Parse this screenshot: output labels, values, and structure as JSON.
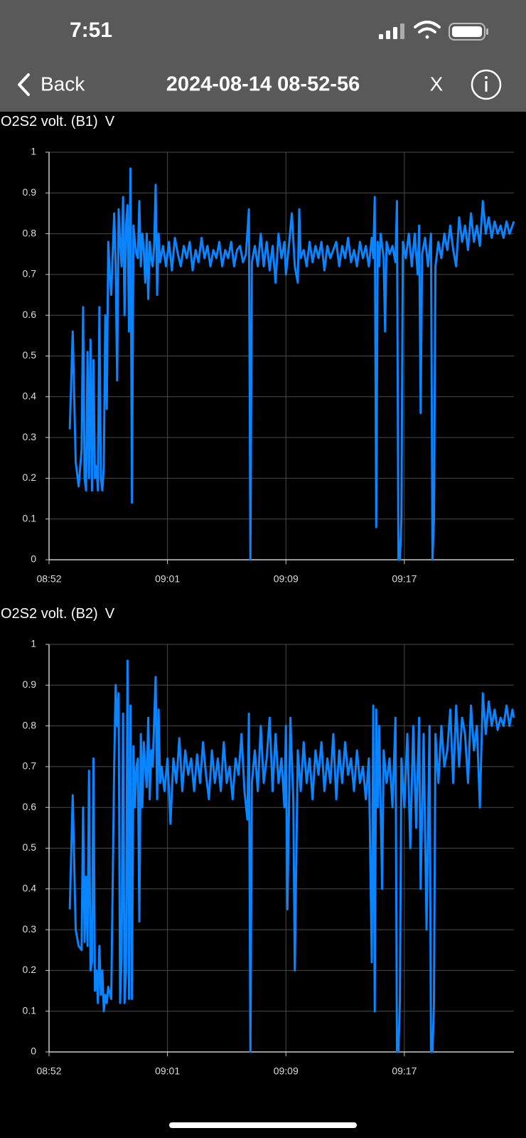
{
  "status_bar": {
    "time": "7:51"
  },
  "nav": {
    "back": "Back",
    "title": "2024-08-14 08-52-56",
    "close": "X"
  },
  "chart_data": [
    {
      "type": "line",
      "title": "O2S2 volt. (B1)",
      "unit": "V",
      "color": "#0a84ff",
      "grid": true,
      "xlim": [
        0,
        31.4
      ],
      "xticks": [
        {
          "value": 0,
          "label": "08:52"
        },
        {
          "value": 8,
          "label": "09:01"
        },
        {
          "value": 16,
          "label": "09:09"
        },
        {
          "value": 24,
          "label": "09:17"
        }
      ],
      "ylim": [
        0,
        1
      ],
      "yticks": [
        0,
        0.1,
        0.2,
        0.3,
        0.4,
        0.5,
        0.6,
        0.7,
        0.8,
        0.9,
        1
      ],
      "x": [
        1.4,
        1.6,
        1.8,
        2.0,
        2.2,
        2.3,
        2.4,
        2.5,
        2.6,
        2.7,
        2.8,
        2.9,
        3.0,
        3.1,
        3.2,
        3.3,
        3.4,
        3.5,
        3.6,
        3.7,
        3.8,
        3.9,
        4.0,
        4.1,
        4.2,
        4.3,
        4.4,
        4.5,
        4.6,
        4.7,
        4.8,
        4.9,
        5.0,
        5.1,
        5.2,
        5.3,
        5.4,
        5.5,
        5.6,
        5.7,
        5.8,
        5.9,
        6.0,
        6.1,
        6.2,
        6.3,
        6.4,
        6.5,
        6.6,
        6.7,
        6.8,
        6.9,
        7.0,
        7.1,
        7.2,
        7.3,
        7.4,
        7.5,
        7.7,
        7.9,
        8.1,
        8.3,
        8.5,
        8.7,
        8.9,
        9.1,
        9.3,
        9.5,
        9.7,
        9.9,
        10.1,
        10.3,
        10.5,
        10.7,
        10.9,
        11.1,
        11.3,
        11.5,
        11.7,
        11.9,
        12.1,
        12.3,
        12.5,
        12.7,
        12.9,
        13.1,
        13.3,
        13.5,
        13.6,
        13.7,
        13.9,
        14.1,
        14.3,
        14.5,
        14.7,
        14.9,
        15.1,
        15.3,
        15.5,
        15.7,
        15.9,
        16.0,
        16.2,
        16.4,
        16.6,
        16.8,
        16.9,
        17.0,
        17.2,
        17.4,
        17.6,
        17.8,
        18.0,
        18.2,
        18.4,
        18.6,
        18.8,
        19.0,
        19.2,
        19.4,
        19.6,
        19.8,
        20.0,
        20.2,
        20.4,
        20.6,
        20.8,
        21.0,
        21.2,
        21.4,
        21.6,
        21.8,
        21.9,
        22.0,
        22.1,
        22.2,
        22.3,
        22.4,
        22.6,
        22.7,
        22.8,
        23.0,
        23.2,
        23.4,
        23.5,
        23.6,
        23.7,
        23.8,
        23.9,
        24.1,
        24.3,
        24.5,
        24.7,
        24.9,
        25.0,
        25.1,
        25.2,
        25.4,
        25.6,
        25.8,
        25.9,
        26.0,
        26.1,
        26.3,
        26.5,
        26.7,
        26.9,
        27.1,
        27.3,
        27.5,
        27.7,
        27.9,
        28.1,
        28.3,
        28.5,
        28.7,
        28.9,
        29.1,
        29.3,
        29.5,
        29.7,
        29.9,
        30.1,
        30.3,
        30.5,
        30.7,
        30.9,
        31.1,
        31.3,
        31.4
      ],
      "values": [
        0.32,
        0.56,
        0.24,
        0.18,
        0.27,
        0.62,
        0.2,
        0.17,
        0.51,
        0.2,
        0.54,
        0.17,
        0.49,
        0.2,
        0.23,
        0.17,
        0.62,
        0.2,
        0.17,
        0.23,
        0.6,
        0.37,
        0.78,
        0.7,
        0.65,
        0.75,
        0.85,
        0.72,
        0.44,
        0.86,
        0.78,
        0.72,
        0.89,
        0.6,
        0.82,
        0.87,
        0.56,
        0.96,
        0.14,
        0.82,
        0.78,
        0.75,
        0.74,
        0.88,
        0.72,
        0.8,
        0.76,
        0.68,
        0.8,
        0.64,
        0.78,
        0.74,
        0.72,
        0.77,
        0.92,
        0.65,
        0.8,
        0.73,
        0.77,
        0.72,
        0.78,
        0.71,
        0.79,
        0.75,
        0.72,
        0.77,
        0.74,
        0.78,
        0.71,
        0.76,
        0.73,
        0.79,
        0.74,
        0.77,
        0.72,
        0.76,
        0.74,
        0.78,
        0.72,
        0.76,
        0.74,
        0.78,
        0.72,
        0.76,
        0.77,
        0.73,
        0.75,
        0.86,
        0.0,
        0.73,
        0.77,
        0.72,
        0.8,
        0.72,
        0.78,
        0.71,
        0.77,
        0.68,
        0.8,
        0.74,
        0.78,
        0.7,
        0.77,
        0.85,
        0.72,
        0.68,
        0.86,
        0.74,
        0.76,
        0.72,
        0.78,
        0.73,
        0.77,
        0.74,
        0.78,
        0.71,
        0.77,
        0.74,
        0.76,
        0.78,
        0.72,
        0.77,
        0.74,
        0.79,
        0.73,
        0.76,
        0.72,
        0.78,
        0.74,
        0.77,
        0.72,
        0.79,
        0.74,
        0.89,
        0.08,
        0.78,
        0.72,
        0.8,
        0.74,
        0.56,
        0.78,
        0.75,
        0.77,
        0.73,
        0.88,
        0.0,
        0.0,
        0.1,
        0.78,
        0.74,
        0.8,
        0.72,
        0.8,
        0.7,
        0.82,
        0.36,
        0.75,
        0.79,
        0.72,
        0.8,
        0.0,
        0.1,
        0.72,
        0.78,
        0.74,
        0.8,
        0.76,
        0.82,
        0.76,
        0.72,
        0.84,
        0.78,
        0.82,
        0.76,
        0.85,
        0.78,
        0.82,
        0.77,
        0.88,
        0.8,
        0.84,
        0.79,
        0.83,
        0.8,
        0.82,
        0.79,
        0.83,
        0.8,
        0.82,
        0.83
      ]
    },
    {
      "type": "line",
      "title": "O2S2 volt. (B2)",
      "unit": "V",
      "color": "#0a84ff",
      "grid": true,
      "xlim": [
        0,
        31.4
      ],
      "xticks": [
        {
          "value": 0,
          "label": "08:52"
        },
        {
          "value": 8,
          "label": "09:01"
        },
        {
          "value": 16,
          "label": "09:09"
        },
        {
          "value": 24,
          "label": "09:17"
        }
      ],
      "ylim": [
        0,
        1
      ],
      "yticks": [
        0,
        0.1,
        0.2,
        0.3,
        0.4,
        0.5,
        0.6,
        0.7,
        0.8,
        0.9,
        1
      ],
      "x": [
        1.4,
        1.6,
        1.8,
        2.0,
        2.2,
        2.3,
        2.4,
        2.5,
        2.6,
        2.7,
        2.8,
        2.9,
        3.0,
        3.1,
        3.2,
        3.3,
        3.4,
        3.5,
        3.6,
        3.7,
        3.8,
        3.9,
        4.0,
        4.2,
        4.4,
        4.5,
        4.6,
        4.7,
        4.8,
        4.9,
        5.0,
        5.1,
        5.2,
        5.3,
        5.4,
        5.5,
        5.6,
        5.7,
        5.8,
        5.9,
        6.0,
        6.1,
        6.2,
        6.3,
        6.4,
        6.5,
        6.6,
        6.7,
        6.8,
        6.9,
        7.0,
        7.2,
        7.3,
        7.4,
        7.5,
        7.6,
        7.8,
        8.0,
        8.2,
        8.4,
        8.6,
        8.8,
        9.0,
        9.2,
        9.4,
        9.6,
        9.8,
        10.0,
        10.2,
        10.4,
        10.6,
        10.8,
        11.0,
        11.2,
        11.4,
        11.6,
        11.8,
        12.0,
        12.2,
        12.4,
        12.6,
        12.8,
        13.0,
        13.2,
        13.4,
        13.5,
        13.6,
        13.7,
        13.9,
        14.1,
        14.3,
        14.5,
        14.7,
        14.9,
        15.1,
        15.3,
        15.5,
        15.7,
        15.9,
        16.0,
        16.1,
        16.3,
        16.5,
        16.6,
        16.8,
        17.0,
        17.2,
        17.4,
        17.6,
        17.8,
        18.0,
        18.2,
        18.4,
        18.6,
        18.8,
        19.0,
        19.2,
        19.4,
        19.6,
        19.8,
        20.0,
        20.2,
        20.4,
        20.6,
        20.8,
        21.0,
        21.2,
        21.4,
        21.6,
        21.8,
        21.9,
        22.0,
        22.1,
        22.2,
        22.3,
        22.5,
        22.6,
        22.8,
        23.0,
        23.2,
        23.4,
        23.5,
        23.6,
        23.7,
        23.8,
        24.0,
        24.2,
        24.4,
        24.6,
        24.8,
        25.0,
        25.1,
        25.3,
        25.5,
        25.7,
        25.8,
        25.9,
        26.0,
        26.1,
        26.3,
        26.5,
        26.7,
        26.9,
        27.1,
        27.3,
        27.5,
        27.7,
        27.9,
        28.1,
        28.3,
        28.5,
        28.7,
        28.9,
        29.1,
        29.3,
        29.5,
        29.7,
        29.9,
        30.1,
        30.3,
        30.5,
        30.7,
        30.9,
        31.1,
        31.3,
        31.4
      ],
      "values": [
        0.35,
        0.63,
        0.3,
        0.26,
        0.25,
        0.6,
        0.27,
        0.43,
        0.26,
        0.69,
        0.2,
        0.22,
        0.72,
        0.15,
        0.2,
        0.12,
        0.26,
        0.14,
        0.2,
        0.1,
        0.14,
        0.12,
        0.16,
        0.13,
        0.7,
        0.9,
        0.8,
        0.88,
        0.12,
        0.23,
        0.83,
        0.12,
        0.2,
        0.96,
        0.13,
        0.85,
        0.13,
        0.75,
        0.6,
        0.7,
        0.72,
        0.32,
        0.78,
        0.6,
        0.76,
        0.7,
        0.65,
        0.82,
        0.62,
        0.74,
        0.7,
        0.92,
        0.62,
        0.84,
        0.66,
        0.7,
        0.64,
        0.72,
        0.56,
        0.72,
        0.66,
        0.77,
        0.64,
        0.74,
        0.68,
        0.72,
        0.64,
        0.73,
        0.66,
        0.76,
        0.68,
        0.62,
        0.74,
        0.66,
        0.72,
        0.64,
        0.76,
        0.66,
        0.7,
        0.62,
        0.72,
        0.68,
        0.78,
        0.64,
        0.57,
        0.83,
        0.0,
        0.66,
        0.74,
        0.64,
        0.8,
        0.66,
        0.72,
        0.82,
        0.64,
        0.78,
        0.66,
        0.72,
        0.6,
        0.8,
        0.35,
        0.82,
        0.62,
        0.2,
        0.74,
        0.64,
        0.76,
        0.66,
        0.72,
        0.62,
        0.74,
        0.68,
        0.76,
        0.64,
        0.72,
        0.66,
        0.78,
        0.62,
        0.74,
        0.66,
        0.76,
        0.68,
        0.72,
        0.64,
        0.74,
        0.66,
        0.7,
        0.62,
        0.72,
        0.22,
        0.85,
        0.1,
        0.84,
        0.6,
        0.8,
        0.4,
        0.74,
        0.66,
        0.72,
        0.6,
        0.82,
        0.0,
        0.0,
        0.13,
        0.72,
        0.6,
        0.78,
        0.5,
        0.8,
        0.55,
        0.82,
        0.4,
        0.78,
        0.3,
        0.8,
        0.0,
        0.0,
        0.12,
        0.78,
        0.66,
        0.8,
        0.7,
        0.74,
        0.84,
        0.66,
        0.85,
        0.7,
        0.82,
        0.78,
        0.66,
        0.85,
        0.74,
        0.8,
        0.6,
        0.88,
        0.78,
        0.86,
        0.8,
        0.84,
        0.79,
        0.82,
        0.8,
        0.85,
        0.8,
        0.84,
        0.82
      ]
    }
  ]
}
